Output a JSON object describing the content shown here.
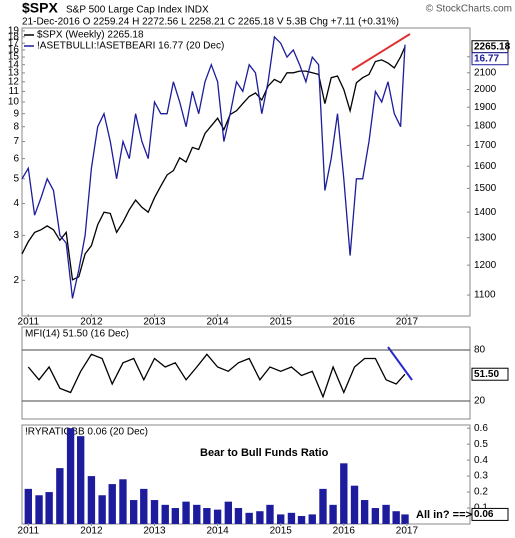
{
  "chart_data": [
    {
      "type": "line",
      "title": "$SPX",
      "subtitle": "S&P 500 Large Cap Index INDX",
      "quote": "21-Dec-2016  O 2259.24  H 2272.56  L 2258.21  C 2265.18  V 5.3B  Chg +7.11 (+0.31%)",
      "source": "© StockCharts.com",
      "log_scale": true,
      "grid": false,
      "x": [
        2010.9,
        2011.0,
        2011.1,
        2011.2,
        2011.3,
        2011.4,
        2011.5,
        2011.6,
        2011.7,
        2011.8,
        2011.9,
        2012.0,
        2012.1,
        2012.2,
        2012.3,
        2012.4,
        2012.5,
        2012.6,
        2012.7,
        2012.8,
        2012.9,
        2013.0,
        2013.1,
        2013.2,
        2013.3,
        2013.4,
        2013.5,
        2013.6,
        2013.7,
        2013.8,
        2013.9,
        2014.0,
        2014.1,
        2014.2,
        2014.3,
        2014.4,
        2014.5,
        2014.6,
        2014.7,
        2014.8,
        2014.9,
        2015.0,
        2015.1,
        2015.2,
        2015.3,
        2015.4,
        2015.5,
        2015.6,
        2015.7,
        2015.8,
        2015.9,
        2016.0,
        2016.1,
        2016.2,
        2016.3,
        2016.4,
        2016.5,
        2016.6,
        2016.7,
        2016.8,
        2016.9,
        2016.97
      ],
      "xlim": [
        2010.9,
        2018
      ],
      "xticks": [
        2011,
        2012,
        2013,
        2014,
        2015,
        2016,
        2017
      ],
      "ylim": [
        1.45,
        19.5
      ],
      "yticks": [
        2,
        3,
        4,
        5,
        6,
        7,
        8,
        9,
        10,
        11,
        12,
        13,
        14,
        15,
        16,
        17,
        18,
        19
      ],
      "y2lim": [
        1035,
        2392
      ],
      "y2ticks": [
        1100,
        1200,
        1300,
        1400,
        1500,
        1600,
        1700,
        1800,
        1900,
        2000,
        2100,
        2200
      ],
      "series": [
        {
          "name": "!ASETBULLI:!ASETBEARI 16.77 (20 Dec)",
          "color": "#1c1c9c",
          "axis": "y",
          "values": [
            5,
            5.5,
            3.6,
            4.2,
            5,
            4.5,
            3,
            2.8,
            1.7,
            2.2,
            3,
            5.5,
            8,
            9,
            7,
            5,
            7,
            6,
            9,
            7,
            6,
            10,
            9,
            9,
            12,
            10,
            8,
            11,
            9,
            12,
            14,
            12,
            7,
            9,
            12,
            11,
            14,
            13,
            9,
            12,
            18,
            17,
            15,
            16,
            14,
            12,
            15,
            14,
            4.5,
            6,
            9,
            5,
            2.5,
            5,
            5,
            7,
            11,
            10,
            12,
            9,
            8,
            16.77
          ]
        },
        {
          "name": "$SPX (Weekly) 2265.18",
          "color": "#000000",
          "axis": "y2",
          "values": [
            1240,
            1285,
            1320,
            1330,
            1345,
            1330,
            1290,
            1320,
            1150,
            1160,
            1240,
            1270,
            1350,
            1400,
            1395,
            1320,
            1360,
            1410,
            1450,
            1420,
            1400,
            1460,
            1510,
            1560,
            1580,
            1640,
            1620,
            1690,
            1680,
            1760,
            1800,
            1840,
            1780,
            1860,
            1880,
            1920,
            1960,
            1980,
            1940,
            2020,
            2060,
            2040,
            2100,
            2100,
            2110,
            2110,
            2100,
            2090,
            1920,
            2070,
            2080,
            2000,
            1880,
            2040,
            2070,
            2090,
            2170,
            2180,
            2160,
            2130,
            2200,
            2265.18
          ]
        }
      ]
    },
    {
      "type": "line",
      "title": "MFI(14) 51.50 (16 Dec)",
      "color": "#000000",
      "grid": true,
      "x": [
        2011.0,
        2011.17,
        2011.33,
        2011.5,
        2011.67,
        2011.83,
        2012.0,
        2012.17,
        2012.33,
        2012.5,
        2012.67,
        2012.83,
        2013.0,
        2013.17,
        2013.33,
        2013.5,
        2013.67,
        2013.83,
        2014.0,
        2014.17,
        2014.33,
        2014.5,
        2014.67,
        2014.83,
        2015.0,
        2015.17,
        2015.33,
        2015.5,
        2015.67,
        2015.83,
        2016.0,
        2016.17,
        2016.33,
        2016.5,
        2016.67,
        2016.83,
        2016.97
      ],
      "values": [
        60,
        45,
        60,
        35,
        30,
        55,
        75,
        70,
        40,
        65,
        70,
        45,
        70,
        60,
        65,
        45,
        60,
        75,
        60,
        55,
        65,
        70,
        45,
        60,
        55,
        60,
        50,
        55,
        25,
        60,
        30,
        60,
        70,
        70,
        45,
        40,
        51.5
      ],
      "value_labels": [
        null,
        null,
        null,
        null,
        null,
        null,
        null,
        null,
        null,
        null,
        null,
        null,
        null,
        null,
        null,
        null,
        null,
        null,
        null,
        null,
        null,
        null,
        null,
        null,
        null,
        null,
        null,
        null,
        null,
        null,
        null,
        null,
        null,
        null,
        null,
        null,
        "51.50"
      ],
      "xlim": [
        2010.9,
        2018
      ],
      "ylim": [
        0,
        100
      ],
      "yticks": [
        80,
        20
      ]
    },
    {
      "type": "bar",
      "title": "!RYRATIOBB 0.06 (20 Dec)",
      "annotation": "Bear to Bull Funds Ratio",
      "note": "All in? ==>",
      "color": "#1c1c9c",
      "x": [
        2011.0,
        2011.17,
        2011.33,
        2011.5,
        2011.67,
        2011.83,
        2012.0,
        2012.17,
        2012.33,
        2012.5,
        2012.67,
        2012.83,
        2013.0,
        2013.17,
        2013.33,
        2013.5,
        2013.67,
        2013.83,
        2014.0,
        2014.17,
        2014.33,
        2014.5,
        2014.67,
        2014.83,
        2015.0,
        2015.17,
        2015.33,
        2015.5,
        2015.67,
        2015.83,
        2016.0,
        2016.17,
        2016.33,
        2016.5,
        2016.67,
        2016.83,
        2016.97
      ],
      "values": [
        0.22,
        0.18,
        0.2,
        0.35,
        0.6,
        0.55,
        0.3,
        0.18,
        0.25,
        0.28,
        0.15,
        0.22,
        0.15,
        0.12,
        0.1,
        0.14,
        0.12,
        0.1,
        0.09,
        0.14,
        0.1,
        0.07,
        0.08,
        0.12,
        0.06,
        0.07,
        0.05,
        0.06,
        0.22,
        0.12,
        0.38,
        0.24,
        0.15,
        0.1,
        0.12,
        0.08,
        0.06
      ],
      "xlim": [
        2010.9,
        2018
      ],
      "ylim": [
        0,
        0.62
      ],
      "yticks": [
        0.1,
        0.2,
        0.3,
        0.4,
        0.5,
        0.6
      ],
      "xticks": [
        2011,
        2012,
        2013,
        2014,
        2015,
        2016,
        2017
      ]
    }
  ]
}
